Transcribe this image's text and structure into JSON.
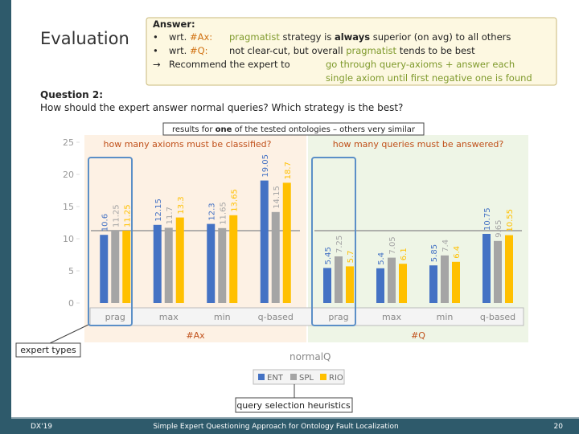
{
  "slide": {
    "title": "Evaluation",
    "answer": {
      "heading": "Answer:",
      "line1": [
        "•",
        "wrt.",
        "#Ax:",
        "pragmatist",
        "strategy is",
        "always",
        "superior (on avg) to all others"
      ],
      "line2": [
        "•",
        "wrt.",
        "#Q:",
        "not clear-cut, but overall",
        "pragmatist",
        "tends to be best"
      ],
      "line3": [
        "→",
        "Recommend the expert to",
        "go through query-axioms + answer each"
      ],
      "line4": "single axiom until first negative one is found"
    },
    "question_heading": "Question 2:",
    "question": "How should the expert answer normal queries? Which strategy is the best?",
    "note": [
      "results for",
      "one",
      "of the tested ontologies – others very similar"
    ],
    "x_label": "normalQ",
    "callout_experts": "expert types",
    "callout_heuristics": "query selection heuristics",
    "footer_left": "DX'19",
    "footer_center": "Simple Expert Questioning Approach for Ontology Fault Localization",
    "page_number": "20"
  },
  "chart_data": [
    {
      "type": "bar",
      "panel_label": "#Ax",
      "title": "how many axioms must be classified?",
      "categories": [
        "prag",
        "max",
        "min",
        "q-based"
      ],
      "series": [
        {
          "name": "ENT",
          "color": "#4472c4",
          "values": [
            10.6,
            12.15,
            12.3,
            19.05
          ]
        },
        {
          "name": "SPL",
          "color": "#a5a5a5",
          "values": [
            11.25,
            11.7,
            11.65,
            14.15
          ]
        },
        {
          "name": "RIO",
          "color": "#ffc000",
          "values": [
            11.25,
            13.3,
            13.65,
            18.7
          ]
        }
      ],
      "ylim": [
        0,
        25
      ],
      "yticks": [
        0,
        5,
        10,
        15,
        20,
        25
      ]
    },
    {
      "type": "bar",
      "panel_label": "#Q",
      "title": "how many queries must be answered?",
      "categories": [
        "prag",
        "max",
        "min",
        "q-based"
      ],
      "series": [
        {
          "color": "#4472c4",
          "values": [
            5.45,
            5.4,
            5.85,
            10.75
          ]
        },
        {
          "color": "#a5a5a5",
          "values": [
            7.25,
            7.05,
            7.4,
            9.65
          ]
        },
        {
          "color": "#ffc000",
          "values": [
            5.7,
            6.1,
            6.4,
            10.55
          ]
        }
      ],
      "ylim": [
        0,
        25
      ]
    }
  ]
}
